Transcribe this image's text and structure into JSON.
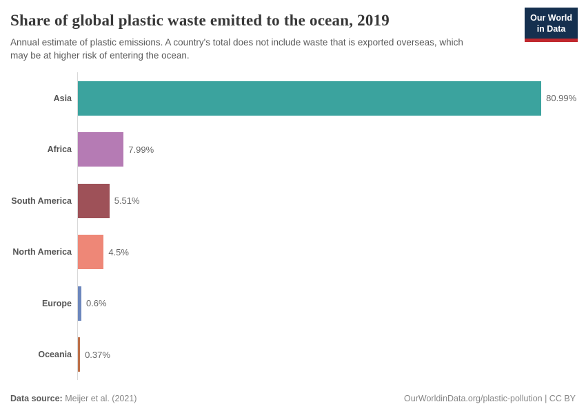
{
  "header": {
    "title": "Share of global plastic waste emitted to the ocean, 2019",
    "subtitle_line1": "Annual estimate of plastic emissions. A country's total does not include waste that is exported overseas, which",
    "subtitle_line2": "may be at higher risk of entering the ocean.",
    "logo": {
      "line1": "Our World",
      "line2": "in Data",
      "bg_color": "#15304f",
      "stripe_color": "#c0282e"
    }
  },
  "chart_data": {
    "type": "bar",
    "orientation": "horizontal",
    "title": "Share of global plastic waste emitted to the ocean, 2019",
    "categories": [
      "Asia",
      "Africa",
      "South America",
      "North America",
      "Europe",
      "Oceania"
    ],
    "values": [
      80.99,
      7.99,
      5.51,
      4.5,
      0.6,
      0.37
    ],
    "value_labels": [
      "80.99%",
      "7.99%",
      "5.51%",
      "4.5%",
      "0.6%",
      "0.37%"
    ],
    "bar_colors": [
      "#3ba39e",
      "#b57bb4",
      "#9e5158",
      "#ee8777",
      "#6d87bd",
      "#bd7049"
    ],
    "unit": "%",
    "xlim": [
      0,
      87
    ],
    "grid": false,
    "legend": "none",
    "axis_line_color": "#d8d8d8"
  },
  "footer": {
    "data_source_label": "Data source:",
    "data_source_value": "Meijer et al. (2021)",
    "link_text": "OurWorldinData.org/plastic-pollution | CC BY"
  }
}
